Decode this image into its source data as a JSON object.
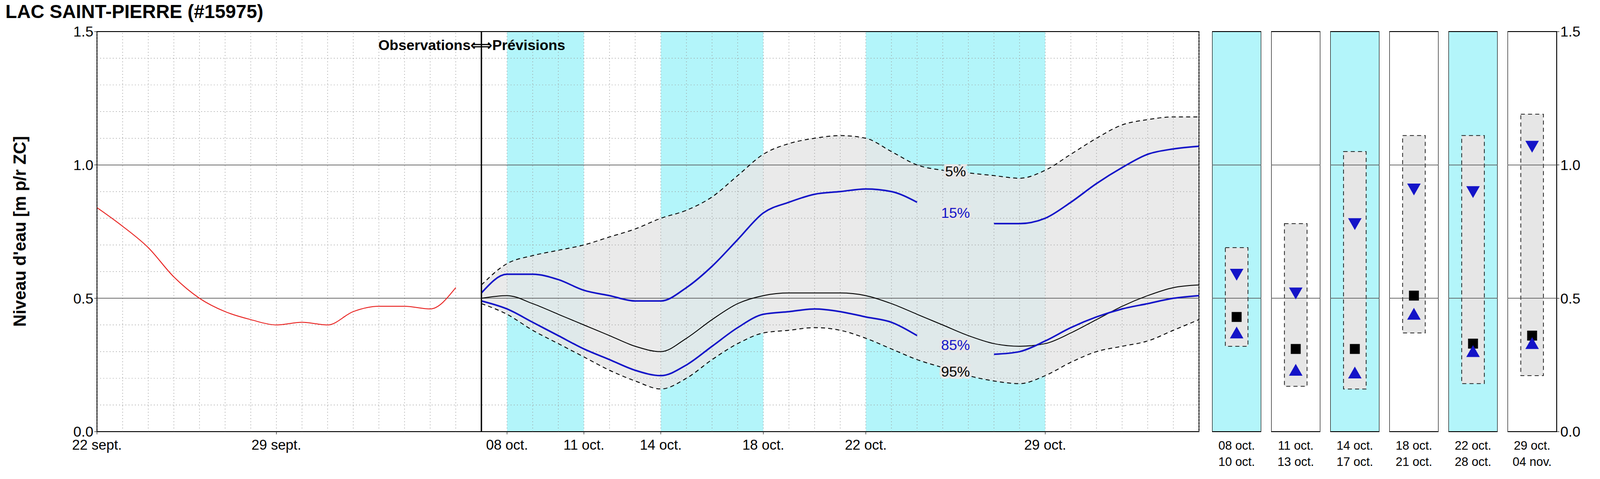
{
  "chart_data": [
    {
      "type": "line",
      "title": "LAC SAINT-PIERRE (#15975)",
      "y_label": "Niveau d'eau [m p/r ZC]",
      "x": [
        0,
        1,
        2,
        3,
        4,
        5,
        6,
        7,
        8,
        9,
        10,
        11,
        12,
        13,
        14,
        15,
        16,
        17,
        18,
        19,
        20,
        21,
        22,
        23,
        24,
        25,
        26,
        27,
        28,
        29,
        30,
        31,
        32,
        33,
        34,
        35,
        36,
        37,
        38,
        39,
        40,
        41,
        42,
        43
      ],
      "xlim": [
        0,
        43
      ],
      "xticks": [
        {
          "value": 0,
          "label": "22 sept."
        },
        {
          "value": 7,
          "label": "29 sept."
        },
        {
          "value": 16,
          "label": "08 oct."
        },
        {
          "value": 19,
          "label": "11 oct."
        },
        {
          "value": 22,
          "label": "14 oct."
        },
        {
          "value": 26,
          "label": "18 oct."
        },
        {
          "value": 30,
          "label": "22 oct."
        },
        {
          "value": 37,
          "label": "29 oct."
        }
      ],
      "ylim": [
        0,
        1.5
      ],
      "yticks": [
        {
          "value": 0,
          "label": "0.0"
        },
        0.5,
        {
          "value": 1,
          "label": "1.0"
        },
        1.5
      ],
      "grid": true,
      "shaded": {
        "ranges": [
          [
            16,
            19
          ],
          [
            22,
            26
          ],
          [
            30,
            37
          ]
        ],
        "color": "#b3f5fa"
      },
      "forecast_start": {
        "x": 15,
        "labels": [
          "Observations",
          "⟺",
          "Prévisions"
        ]
      },
      "band": {
        "names": [
          "5%",
          "95%"
        ],
        "color": "#e6e6e6",
        "line_style": "dashed",
        "high": [
          null,
          null,
          null,
          null,
          null,
          null,
          null,
          null,
          null,
          null,
          null,
          null,
          null,
          null,
          null,
          0.55,
          0.63,
          0.66,
          0.68,
          0.7,
          0.73,
          0.76,
          0.8,
          0.83,
          0.88,
          0.96,
          1.04,
          1.08,
          1.1,
          1.11,
          1.1,
          1.05,
          1.0,
          0.98,
          0.97,
          0.96,
          0.95,
          0.98,
          1.04,
          1.1,
          1.15,
          1.17,
          1.18,
          1.18
        ],
        "low": [
          null,
          null,
          null,
          null,
          null,
          null,
          null,
          null,
          null,
          null,
          null,
          null,
          null,
          null,
          null,
          0.48,
          0.44,
          0.38,
          0.33,
          0.28,
          0.23,
          0.19,
          0.16,
          0.2,
          0.27,
          0.33,
          0.37,
          0.38,
          0.39,
          0.38,
          0.35,
          0.31,
          0.27,
          0.24,
          0.21,
          0.19,
          0.18,
          0.21,
          0.26,
          0.3,
          0.32,
          0.34,
          0.38,
          0.42
        ]
      },
      "series": [
        {
          "color": "#e8201e",
          "values": [
            0.84,
            0.77,
            0.69,
            0.58,
            0.5,
            0.45,
            0.42,
            0.4,
            0.41,
            0.4,
            0.45,
            0.47,
            0.47,
            0.46,
            0.54,
            null,
            null,
            null,
            null,
            null,
            null,
            null,
            null,
            null,
            null,
            null,
            null,
            null,
            null,
            null,
            null,
            null,
            null,
            null,
            null,
            null,
            null,
            null,
            null,
            null,
            null,
            null,
            null,
            null
          ]
        },
        {
          "name": "15%",
          "color": "#1414c8",
          "values": [
            null,
            null,
            null,
            null,
            null,
            null,
            null,
            null,
            null,
            null,
            null,
            null,
            null,
            null,
            null,
            0.52,
            0.59,
            0.59,
            0.57,
            0.53,
            0.51,
            0.49,
            0.49,
            0.54,
            0.62,
            0.72,
            0.82,
            0.86,
            0.89,
            0.9,
            0.91,
            0.9,
            0.86,
            null,
            null,
            0.78,
            0.78,
            0.8,
            0.86,
            0.93,
            0.99,
            1.04,
            1.06,
            1.07
          ]
        },
        {
          "color": "#000000",
          "values": [
            null,
            null,
            null,
            null,
            null,
            null,
            null,
            null,
            null,
            null,
            null,
            null,
            null,
            null,
            null,
            0.5,
            0.51,
            0.48,
            0.44,
            0.4,
            0.36,
            0.32,
            0.3,
            0.35,
            0.42,
            0.48,
            0.51,
            0.52,
            0.52,
            0.52,
            0.51,
            0.48,
            0.44,
            0.4,
            0.36,
            0.33,
            0.32,
            0.33,
            0.37,
            0.42,
            0.47,
            0.51,
            0.54,
            0.55
          ]
        },
        {
          "name": "85%",
          "color": "#1414c8",
          "values": [
            null,
            null,
            null,
            null,
            null,
            null,
            null,
            null,
            null,
            null,
            null,
            null,
            null,
            null,
            null,
            0.49,
            0.46,
            0.41,
            0.36,
            0.31,
            0.27,
            0.23,
            0.21,
            0.25,
            0.32,
            0.39,
            0.44,
            0.45,
            0.46,
            0.45,
            0.43,
            0.41,
            0.36,
            null,
            null,
            0.29,
            0.3,
            0.34,
            0.39,
            0.43,
            0.46,
            0.48,
            0.5,
            0.51
          ]
        }
      ]
    },
    {
      "type": "box",
      "categories": [
        [
          "08 oct.",
          "10 oct."
        ],
        [
          "11 oct.",
          "13 oct."
        ],
        [
          "14 oct.",
          "17 oct."
        ],
        [
          "18 oct.",
          "21 oct."
        ],
        [
          "22 oct.",
          "28 oct."
        ],
        [
          "29 oct.",
          "04 nov."
        ]
      ],
      "colors": [
        "#b3f5fa",
        "#ffffff",
        "#b3f5fa",
        "#ffffff",
        "#b3f5fa",
        "#ffffff"
      ],
      "ylim": [
        0,
        1.5
      ],
      "yticks": [
        {
          "value": 0,
          "label": "0.0"
        },
        0.5,
        {
          "value": 1,
          "label": "1.0"
        },
        1.5
      ],
      "line_style": "dashed",
      "box_high": [
        0.69,
        0.78,
        1.05,
        1.11,
        1.11,
        1.19
      ],
      "box_low": [
        0.32,
        0.17,
        0.16,
        0.37,
        0.18,
        0.21
      ],
      "series": [
        {
          "color": "#1414c8",
          "marker": "triangle-down",
          "values": [
            0.59,
            0.52,
            0.78,
            0.91,
            0.9,
            1.07
          ]
        },
        {
          "color": "#000000",
          "marker": "square",
          "values": [
            0.43,
            0.31,
            0.31,
            0.51,
            0.33,
            0.36
          ]
        },
        {
          "color": "#1414c8",
          "marker": "triangle-up",
          "values": [
            0.37,
            0.23,
            0.22,
            0.44,
            0.3,
            0.33
          ]
        }
      ]
    }
  ]
}
